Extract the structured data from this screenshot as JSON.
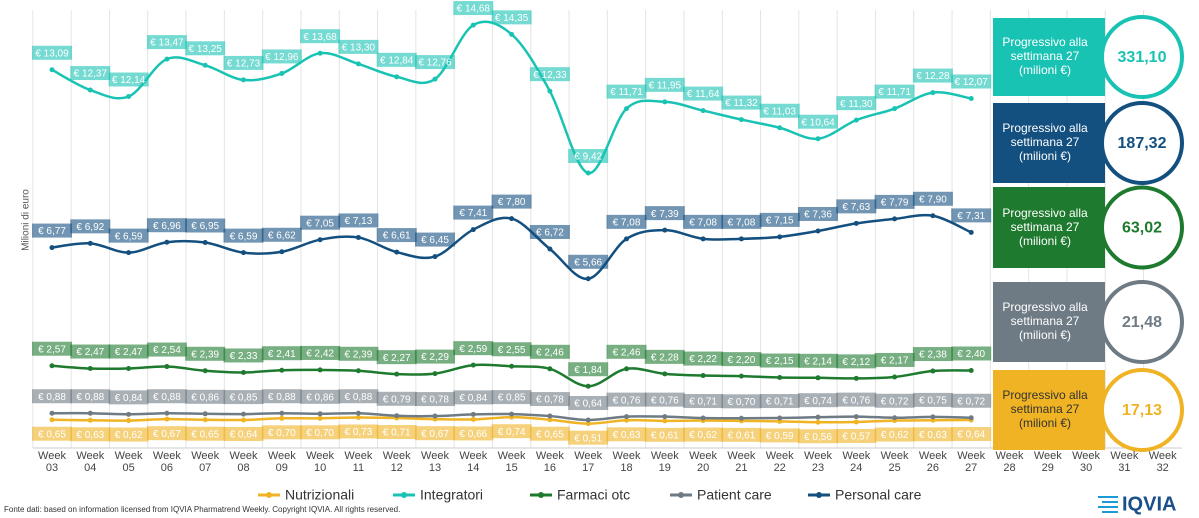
{
  "chart_data": {
    "type": "line",
    "y_label": "Milioni di euro",
    "categories": [
      "Week 03",
      "Week 04",
      "Week 05",
      "Week 06",
      "Week 07",
      "Week 08",
      "Week 09",
      "Week 10",
      "Week 11",
      "Week 12",
      "Week 13",
      "Week 14",
      "Week 15",
      "Week 16",
      "Week 17",
      "Week 18",
      "Week 19",
      "Week 20",
      "Week 21",
      "Week 22",
      "Week 23",
      "Week 24",
      "Week 25",
      "Week 26",
      "Week 27",
      "Week 28",
      "Week 29",
      "Week 30",
      "Week 31",
      "Week 32"
    ],
    "ylim": [
      0,
      15.5
    ],
    "grid": true,
    "series": [
      {
        "name": "Nutrizionali",
        "color": "#f0b323",
        "values": [
          0.65,
          0.63,
          0.62,
          0.67,
          0.65,
          0.64,
          0.7,
          0.7,
          0.73,
          0.71,
          0.67,
          0.66,
          0.74,
          0.65,
          0.51,
          0.63,
          0.61,
          0.62,
          0.61,
          0.59,
          0.56,
          0.57,
          0.62,
          0.63,
          0.64,
          null,
          null,
          null,
          null,
          null
        ],
        "value_labels": [
          "€ 0,65",
          "€ 0,63",
          "€ 0,62",
          "€ 0,67",
          "€ 0,65",
          "€ 0,64",
          "€ 0,70",
          "€ 0,70",
          "€ 0,73",
          "€ 0,71",
          "€ 0,67",
          "€ 0,66",
          "€ 0,74",
          "€ 0,65",
          "€ 0,51",
          "€ 0,63",
          "€ 0,61",
          "€ 0,62",
          "€ 0,61",
          "€ 0,59",
          "€ 0,56",
          "€ 0,57",
          "€ 0,62",
          "€ 0,63",
          "€ 0,64",
          null,
          null,
          null,
          null,
          null
        ]
      },
      {
        "name": "Integratori",
        "color": "#19c3b4",
        "values": [
          13.09,
          12.37,
          12.14,
          13.47,
          13.25,
          12.73,
          12.96,
          13.68,
          13.3,
          12.84,
          12.76,
          14.68,
          14.35,
          12.33,
          9.42,
          11.71,
          11.95,
          11.64,
          11.32,
          11.03,
          10.64,
          11.3,
          11.71,
          12.28,
          12.07,
          null,
          null,
          null,
          null,
          null
        ],
        "value_labels": [
          "€ 13,09",
          "€ 12,37",
          "€ 12,14",
          "€ 13,47",
          "€ 13,25",
          "€ 12,73",
          "€ 12,96",
          "€ 13,68",
          "€ 13,30",
          "€ 12,84",
          "€ 12,76",
          "€ 14,68",
          "€ 14,35",
          "€ 12,33",
          "€ 9,42",
          "€ 11,71",
          "€ 11,95",
          "€ 11,64",
          "€ 11,32",
          "€ 11,03",
          "€ 10,64",
          "€ 11,30",
          "€ 11,71",
          "€ 12,28",
          "€ 12,07",
          null,
          null,
          null,
          null,
          null
        ]
      },
      {
        "name": "Farmaci otc",
        "color": "#1e7a2e",
        "values": [
          2.57,
          2.47,
          2.47,
          2.54,
          2.39,
          2.33,
          2.41,
          2.42,
          2.39,
          2.27,
          2.29,
          2.59,
          2.55,
          2.46,
          1.84,
          2.46,
          2.28,
          2.22,
          2.2,
          2.15,
          2.14,
          2.12,
          2.17,
          2.38,
          2.4,
          null,
          null,
          null,
          null,
          null
        ],
        "value_labels": [
          "€ 2,57",
          "€ 2,47",
          "€ 2,47",
          "€ 2,54",
          "€ 2,39",
          "€ 2,33",
          "€ 2,41",
          "€ 2,42",
          "€ 2,39",
          "€ 2,27",
          "€ 2,29",
          "€ 2,59",
          "€ 2,55",
          "€ 2,46",
          "€ 1,84",
          "€ 2,46",
          "€ 2,28",
          "€ 2,22",
          "€ 2,20",
          "€ 2,15",
          "€ 2,14",
          "€ 2,12",
          "€ 2,17",
          "€ 2,38",
          "€ 2,40",
          null,
          null,
          null,
          null,
          null
        ]
      },
      {
        "name": "Patient care",
        "color": "#6e7b84",
        "values": [
          0.88,
          0.88,
          0.84,
          0.88,
          0.86,
          0.85,
          0.88,
          0.86,
          0.88,
          0.79,
          0.78,
          0.84,
          0.85,
          0.78,
          0.64,
          0.76,
          0.76,
          0.71,
          0.7,
          0.71,
          0.74,
          0.76,
          0.72,
          0.75,
          0.72,
          null,
          null,
          null,
          null,
          null
        ],
        "value_labels": [
          "€ 0,88",
          "€ 0,88",
          "€ 0,84",
          "€ 0,88",
          "€ 0,86",
          "€ 0,85",
          "€ 0,88",
          "€ 0,86",
          "€ 0,88",
          "€ 0,79",
          "€ 0,78",
          "€ 0,84",
          "€ 0,85",
          "€ 0,78",
          "€ 0,64",
          "€ 0,76",
          "€ 0,76",
          "€ 0,71",
          "€ 0,70",
          "€ 0,71",
          "€ 0,74",
          "€ 0,76",
          "€ 0,72",
          "€ 0,75",
          "€ 0,72",
          null,
          null,
          null,
          null,
          null
        ]
      },
      {
        "name": "Personal care",
        "color": "#134f7f",
        "values": [
          6.77,
          6.92,
          6.59,
          6.96,
          6.95,
          6.59,
          6.62,
          7.05,
          7.13,
          6.61,
          6.45,
          7.41,
          7.8,
          6.72,
          5.66,
          7.08,
          7.39,
          7.08,
          7.08,
          7.15,
          7.36,
          7.63,
          7.79,
          7.9,
          7.31,
          null,
          null,
          null,
          null,
          null
        ],
        "value_labels": [
          "€ 6,77",
          "€ 6,92",
          "€ 6,59",
          "€ 6,96",
          "€ 6,95",
          "€ 6,59",
          "€ 6,62",
          "€ 7,05",
          "€ 7,13",
          "€ 6,61",
          "€ 6,45",
          "€ 7,41",
          "€ 7,80",
          "€ 6,72",
          "€ 5,66",
          "€ 7,08",
          "€ 7,39",
          "€ 7,08",
          "€ 7,08",
          "€ 7,15",
          "€ 7,36",
          "€ 7,63",
          "€ 7,79",
          "€ 7,90",
          "€ 7,31",
          null,
          null,
          null,
          null,
          null
        ]
      }
    ],
    "summary": [
      {
        "text": "Progressivo alla settimana 27 (milioni €)",
        "value": "331,10",
        "color": "#19c3b4"
      },
      {
        "text": "Progressivo alla settimana 27 (milioni €)",
        "value": "187,32",
        "color": "#134f7f"
      },
      {
        "text": "Progressivo alla settimana 27 (milioni €)",
        "value": "63,02",
        "color": "#1e7a2e"
      },
      {
        "text": "Progressivo alla settimana 27 (milioni €)",
        "value": "21,48",
        "color": "#6e7b84"
      },
      {
        "text": "Progressivo alla settimana 27 (milioni €)",
        "value": "17,13",
        "color": "#f0b323"
      }
    ],
    "source": "Fonte dati: based on information licensed from IQVIA Pharmatrend Weekly. Copyright IQVIA. All rights reserved.",
    "logo": "IQVIA"
  }
}
